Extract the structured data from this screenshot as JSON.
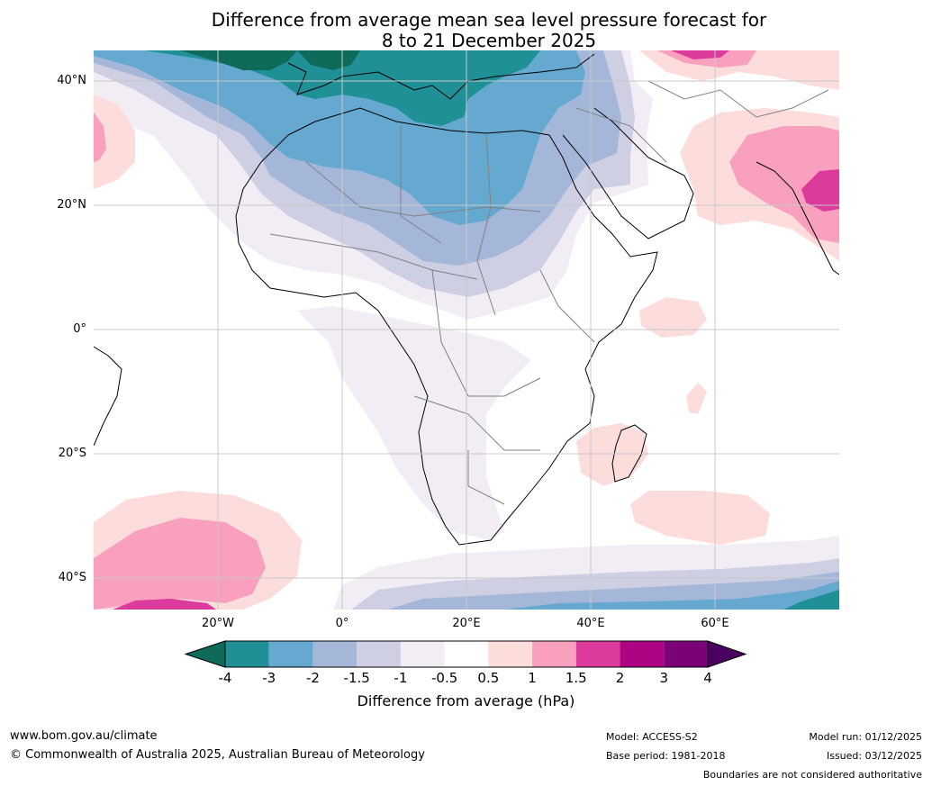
{
  "title": {
    "line1": "Difference from average mean sea level pressure forecast for",
    "line2": "8 to 21 December 2025"
  },
  "axes": {
    "lat_labels": [
      "40°N",
      "20°N",
      "0°",
      "20°S",
      "40°S"
    ],
    "lon_labels": [
      "20°W",
      "0°",
      "20°E",
      "40°E",
      "60°E"
    ]
  },
  "colorbar": {
    "ticks": [
      "-4",
      "-3",
      "-2",
      "-1.5",
      "-1",
      "-0.5",
      "0.5",
      "1",
      "1.5",
      "2",
      "3",
      "4"
    ],
    "label": "Difference from average (hPa)",
    "colors": [
      "#0e6b5a",
      "#1f9096",
      "#65a9d0",
      "#a5b7d8",
      "#cfcfe4",
      "#f2edf5",
      "#ffffff",
      "#fddcdc",
      "#f8a0bd",
      "#dd3a9e",
      "#ae0383",
      "#7a0177",
      "#4a0060"
    ]
  },
  "footer": {
    "website": "www.bom.gov.au/climate",
    "copyright": "© Commonwealth of Australia 2025, Australian Bureau of Meteorology",
    "model": "Model: ACCESS-S2",
    "base_period": "Base period: 1981-2018",
    "model_run": "Model run: 01/12/2025",
    "issued": "Issued: 03/12/2025",
    "disclaimer": "Boundaries are not considered authoritative"
  }
}
